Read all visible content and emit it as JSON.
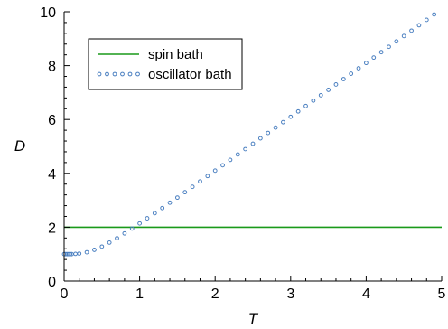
{
  "chart_data": {
    "type": "line",
    "title": "",
    "xlabel": "T",
    "ylabel": "D",
    "xlim": [
      0,
      5
    ],
    "ylim": [
      0,
      10
    ],
    "xticks": [
      0,
      1,
      2,
      3,
      4,
      5
    ],
    "yticks": [
      0,
      2,
      4,
      6,
      8,
      10
    ],
    "grid": false,
    "legend_position": "top-left",
    "series": [
      {
        "name": "spin bath",
        "style": "solid-line",
        "color": "#1a9a1a",
        "x": [
          0,
          5
        ],
        "y": [
          2,
          2
        ]
      },
      {
        "name": "oscillator bath",
        "style": "open-circle-markers",
        "color": "#4a7fc0",
        "x": [
          0.0,
          0.02,
          0.04,
          0.06,
          0.08,
          0.1,
          0.15,
          0.2,
          0.3,
          0.4,
          0.5,
          0.6,
          0.7,
          0.8,
          0.9,
          1.0,
          1.1,
          1.2,
          1.3,
          1.4,
          1.5,
          1.6,
          1.7,
          1.8,
          1.9,
          2.0,
          2.1,
          2.2,
          2.3,
          2.4,
          2.5,
          2.6,
          2.7,
          2.8,
          2.9,
          3.0,
          3.1,
          3.2,
          3.3,
          3.4,
          3.5,
          3.6,
          3.7,
          3.8,
          3.9,
          4.0,
          4.1,
          4.2,
          4.3,
          4.4,
          4.5,
          4.6,
          4.7,
          4.8,
          4.9
        ],
        "y": [
          1.0,
          1.0,
          1.0,
          1.0,
          1.0,
          1.0,
          1.01,
          1.02,
          1.07,
          1.16,
          1.28,
          1.43,
          1.59,
          1.77,
          1.95,
          2.14,
          2.33,
          2.52,
          2.71,
          2.91,
          3.1,
          3.3,
          3.5,
          3.7,
          3.9,
          4.1,
          4.3,
          4.5,
          4.7,
          4.9,
          5.1,
          5.3,
          5.5,
          5.7,
          5.9,
          6.1,
          6.3,
          6.5,
          6.7,
          6.9,
          7.1,
          7.3,
          7.5,
          7.7,
          7.9,
          8.1,
          8.3,
          8.5,
          8.7,
          8.9,
          9.1,
          9.3,
          9.5,
          9.7,
          9.9
        ]
      }
    ]
  }
}
